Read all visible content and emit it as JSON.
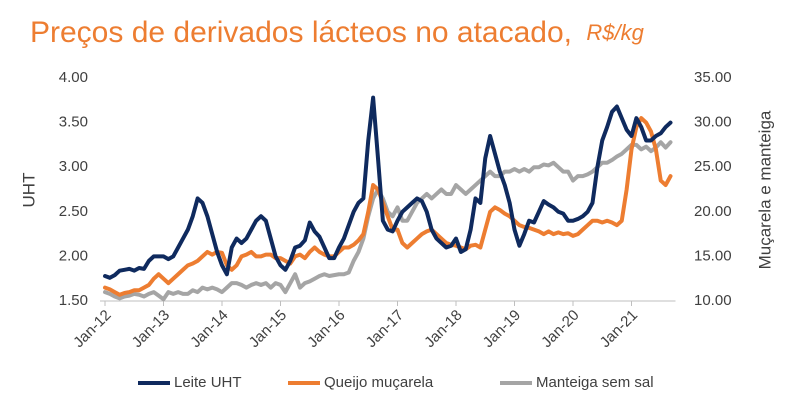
{
  "chart_data": {
    "type": "line",
    "title": "Preços de derivados lácteos no atacado,",
    "subtitle": "R$/kg",
    "y_label": "UHT",
    "y2_label": "Muçarela e manteiga",
    "categories": [
      "Jan-12",
      null,
      null,
      null,
      null,
      null,
      null,
      null,
      null,
      null,
      null,
      null,
      "Jan-13",
      null,
      null,
      null,
      null,
      null,
      null,
      null,
      null,
      null,
      null,
      null,
      "Jan-14",
      null,
      null,
      null,
      null,
      null,
      null,
      null,
      null,
      null,
      null,
      null,
      "Jan-15",
      null,
      null,
      null,
      null,
      null,
      null,
      null,
      null,
      null,
      null,
      null,
      "Jan-16",
      null,
      null,
      null,
      null,
      null,
      null,
      null,
      null,
      null,
      null,
      null,
      "Jan-17",
      null,
      null,
      null,
      null,
      null,
      null,
      null,
      null,
      null,
      null,
      null,
      "Jan-18",
      null,
      null,
      null,
      null,
      null,
      null,
      null,
      null,
      null,
      null,
      null,
      "Jan-19",
      null,
      null,
      null,
      null,
      null,
      null,
      null,
      null,
      null,
      null,
      null,
      "Jan-20",
      null,
      null,
      null,
      null,
      null,
      null,
      null,
      null,
      null,
      null,
      null,
      "Jan-21",
      null,
      null,
      null,
      null,
      null,
      null,
      null,
      null
    ],
    "ylim": [
      1.5,
      4.0
    ],
    "yticks": [
      {
        "value": 1.5,
        "label": "1.50"
      },
      {
        "value": 2,
        "label": "2.00"
      },
      {
        "value": 2.5,
        "label": "2.50"
      },
      {
        "value": 3,
        "label": "3.00"
      },
      {
        "value": 3.5,
        "label": "3.50"
      },
      {
        "value": 4,
        "label": "4.00"
      }
    ],
    "y2lim": [
      10,
      35
    ],
    "y2ticks": [
      {
        "value": 10,
        "label": "10.00"
      },
      {
        "value": 15,
        "label": "15.00"
      },
      {
        "value": 20,
        "label": "20.00"
      },
      {
        "value": 25,
        "label": "25.00"
      },
      {
        "value": 30,
        "label": "30.00"
      },
      {
        "value": 35,
        "label": "35.00"
      }
    ],
    "grid": false,
    "legend": "bottom",
    "series": [
      {
        "name": "Leite UHT",
        "color": "#0f2a5e",
        "values": [
          1.78,
          1.76,
          1.79,
          1.84,
          1.85,
          1.86,
          1.84,
          1.87,
          1.86,
          1.95,
          2.0,
          2.0,
          2.0,
          1.97,
          2.0,
          2.1,
          2.2,
          2.3,
          2.45,
          2.65,
          2.6,
          2.45,
          2.25,
          2.05,
          1.9,
          1.8,
          2.1,
          2.2,
          2.15,
          2.2,
          2.3,
          2.4,
          2.45,
          2.4,
          2.2,
          2.0,
          1.9,
          1.85,
          1.95,
          2.1,
          2.12,
          2.18,
          2.38,
          2.28,
          2.22,
          2.1,
          1.98,
          1.98,
          2.1,
          2.2,
          2.35,
          2.5,
          2.6,
          2.65,
          3.3,
          3.78,
          3.1,
          2.4,
          2.3,
          2.28,
          2.4,
          2.5,
          2.55,
          2.6,
          2.65,
          2.62,
          2.5,
          2.3,
          2.2,
          2.15,
          2.1,
          2.12,
          2.2,
          2.05,
          2.08,
          2.3,
          2.65,
          2.6,
          3.1,
          3.35,
          3.15,
          2.95,
          2.8,
          2.6,
          2.3,
          2.12,
          2.25,
          2.4,
          2.38,
          2.5,
          2.62,
          2.58,
          2.55,
          2.5,
          2.48,
          2.4,
          2.4,
          2.42,
          2.45,
          2.5,
          2.6,
          3.0,
          3.3,
          3.45,
          3.62,
          3.68,
          3.55,
          3.42,
          3.35,
          3.55,
          3.45,
          3.3,
          3.3,
          3.35,
          3.38,
          3.45,
          3.5
        ]
      },
      {
        "name": "Queijo muçarela",
        "color": "#ed7d31",
        "axis": "y2",
        "values": [
          11.5,
          11.3,
          11.0,
          10.7,
          10.9,
          11.0,
          11.2,
          11.2,
          11.5,
          11.8,
          12.5,
          13.0,
          12.5,
          12.0,
          12.5,
          13.0,
          13.5,
          14.0,
          14.2,
          14.5,
          15.0,
          15.5,
          15.2,
          15.5,
          15.4,
          14.0,
          13.5,
          14.0,
          15.0,
          15.2,
          15.5,
          15.0,
          15.0,
          15.2,
          15.2,
          14.8,
          14.8,
          14.5,
          14.2,
          15.0,
          15.2,
          14.8,
          15.5,
          16.0,
          15.5,
          15.2,
          15.0,
          15.0,
          15.5,
          16.0,
          16.0,
          16.3,
          16.8,
          17.5,
          20.0,
          23.0,
          22.5,
          21.0,
          19.5,
          18.0,
          18.0,
          16.5,
          16.0,
          16.5,
          17.0,
          17.5,
          17.8,
          18.0,
          17.5,
          17.0,
          16.5,
          16.3,
          16.2,
          16.0,
          15.8,
          16.2,
          16.3,
          16.0,
          18.0,
          20.0,
          20.5,
          20.2,
          19.8,
          19.5,
          19.0,
          18.5,
          18.3,
          18.2,
          18.0,
          17.8,
          17.5,
          17.8,
          17.5,
          17.7,
          17.5,
          17.6,
          17.3,
          17.5,
          18.0,
          18.5,
          19.0,
          19.0,
          18.8,
          19.0,
          18.8,
          18.5,
          19.0,
          22.5,
          27.0,
          29.5,
          30.5,
          30.0,
          29.0,
          27.0,
          23.5,
          23.0,
          24.0
        ]
      },
      {
        "name": "Manteiga sem sal",
        "color": "#a5a5a5",
        "axis": "y2",
        "values": [
          11.0,
          10.8,
          10.5,
          10.3,
          10.5,
          10.6,
          10.8,
          10.7,
          10.5,
          10.8,
          11.0,
          10.6,
          10.2,
          11.0,
          10.8,
          11.0,
          10.8,
          10.8,
          11.2,
          11.0,
          11.5,
          11.3,
          11.5,
          11.3,
          11.0,
          11.5,
          12.0,
          12.0,
          11.8,
          11.5,
          11.8,
          12.0,
          11.8,
          12.0,
          11.5,
          12.0,
          11.8,
          11.0,
          12.0,
          13.0,
          11.5,
          12.0,
          12.2,
          12.5,
          12.8,
          13.0,
          12.8,
          12.9,
          13.0,
          13.0,
          13.2,
          14.5,
          15.5,
          17.0,
          19.5,
          21.5,
          22.5,
          21.5,
          20.0,
          19.5,
          20.5,
          19.0,
          19.0,
          20.0,
          21.0,
          21.5,
          22.0,
          21.5,
          22.0,
          22.5,
          22.0,
          22.0,
          23.0,
          22.5,
          22.0,
          22.5,
          23.0,
          23.5,
          24.0,
          24.5,
          24.0,
          24.0,
          24.5,
          24.5,
          24.8,
          24.5,
          24.8,
          24.5,
          25.0,
          25.0,
          25.3,
          25.2,
          25.5,
          25.0,
          24.5,
          24.5,
          23.5,
          24.0,
          24.0,
          24.2,
          24.5,
          25.0,
          25.5,
          25.5,
          25.8,
          26.2,
          26.5,
          27.0,
          27.5,
          27.5,
          27.0,
          27.3,
          26.8,
          27.2,
          27.8,
          27.2,
          27.8
        ]
      }
    ]
  }
}
